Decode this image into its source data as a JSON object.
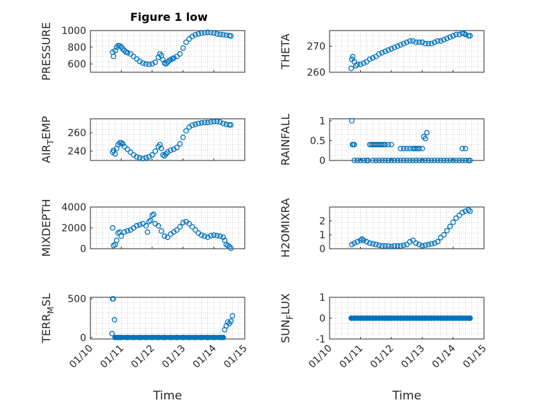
{
  "title": "Figure 1 low",
  "colors": {
    "marker": "#0072BD",
    "axis": "#262626",
    "grid": "#a6a6a6"
  },
  "x_tick_labels": [
    "01/10",
    "01/11",
    "01/12",
    "01/13",
    "01/14",
    "01/15"
  ],
  "chart_data": [
    {
      "type": "scatter",
      "ylabel": "PRESSURE",
      "xlabel": "",
      "xlim": [
        0,
        5
      ],
      "ylim": [
        500,
        1000
      ],
      "yticks": [
        600,
        800,
        1000
      ],
      "x": [
        0.72,
        0.75,
        0.8,
        0.85,
        0.9,
        0.95,
        1.0,
        1.05,
        1.1,
        1.15,
        1.2,
        1.3,
        1.4,
        1.5,
        1.6,
        1.7,
        1.8,
        1.9,
        2.0,
        2.1,
        2.2,
        2.25,
        2.3,
        2.35,
        2.4,
        2.45,
        2.5,
        2.55,
        2.6,
        2.65,
        2.7,
        2.8,
        2.9,
        3.0,
        3.1,
        3.2,
        3.3,
        3.4,
        3.5,
        3.6,
        3.7,
        3.8,
        3.9,
        4.0,
        4.1,
        4.2,
        4.3,
        4.4,
        4.5,
        4.55
      ],
      "values": [
        740,
        690,
        760,
        800,
        820,
        815,
        805,
        780,
        760,
        745,
        735,
        720,
        690,
        660,
        630,
        610,
        600,
        595,
        600,
        620,
        680,
        720,
        700,
        650,
        610,
        600,
        620,
        640,
        650,
        660,
        670,
        690,
        720,
        790,
        860,
        900,
        930,
        950,
        960,
        970,
        975,
        980,
        975,
        970,
        960,
        955,
        950,
        945,
        940,
        935
      ],
      "grid": true
    },
    {
      "type": "scatter",
      "ylabel": "THETA",
      "xlabel": "",
      "xlim": [
        0,
        5
      ],
      "ylim": [
        260,
        276
      ],
      "yticks": [
        260,
        270
      ],
      "x": [
        0.7,
        0.72,
        0.75,
        0.8,
        0.85,
        0.9,
        1.0,
        1.1,
        1.2,
        1.3,
        1.4,
        1.5,
        1.6,
        1.7,
        1.8,
        1.9,
        2.0,
        2.1,
        2.2,
        2.3,
        2.4,
        2.5,
        2.6,
        2.7,
        2.8,
        2.9,
        3.0,
        3.1,
        3.2,
        3.3,
        3.4,
        3.5,
        3.6,
        3.7,
        3.8,
        3.9,
        4.0,
        4.1,
        4.2,
        4.3,
        4.35,
        4.4,
        4.5,
        4.55
      ],
      "values": [
        261.5,
        265,
        266,
        264,
        262.5,
        263,
        263,
        263.5,
        264,
        265,
        265.5,
        266,
        267,
        267.5,
        268,
        268.5,
        269,
        269.5,
        270,
        270.5,
        271,
        271.5,
        272,
        272,
        271.5,
        271.5,
        271.5,
        271,
        271,
        271,
        271.5,
        272,
        272,
        272.5,
        273,
        273.5,
        274,
        274.5,
        274.5,
        275,
        274.8,
        274.5,
        274,
        274
      ],
      "grid": true
    },
    {
      "type": "scatter",
      "ylabel": "AIR_TEMP",
      "xlabel": "",
      "xlim": [
        0,
        5
      ],
      "ylim": [
        230,
        275
      ],
      "yticks": [
        240,
        260
      ],
      "x": [
        0.72,
        0.75,
        0.8,
        0.85,
        0.9,
        0.95,
        1.0,
        1.05,
        1.1,
        1.2,
        1.3,
        1.4,
        1.5,
        1.6,
        1.7,
        1.8,
        1.9,
        2.0,
        2.1,
        2.2,
        2.25,
        2.3,
        2.35,
        2.4,
        2.45,
        2.5,
        2.6,
        2.7,
        2.8,
        2.9,
        3.0,
        3.1,
        3.2,
        3.3,
        3.4,
        3.5,
        3.6,
        3.7,
        3.8,
        3.9,
        4.0,
        4.1,
        4.2,
        4.3,
        4.4,
        4.5,
        4.55
      ],
      "values": [
        239,
        241,
        237,
        243,
        247,
        249,
        249,
        248,
        245,
        242,
        239,
        236,
        234,
        233,
        232,
        233,
        234,
        236,
        240,
        245,
        247,
        243,
        236,
        235,
        237,
        239,
        241,
        242,
        244,
        248,
        255,
        262,
        266,
        268,
        269,
        270,
        270.5,
        271,
        271,
        271.5,
        272,
        272,
        271.5,
        270,
        269,
        268.5,
        268.5
      ],
      "grid": true
    },
    {
      "type": "scatter",
      "ylabel": "RAINFALL",
      "xlabel": "",
      "xlim": [
        0,
        5
      ],
      "ylim": [
        0,
        1.05
      ],
      "yticks": [
        0,
        0.5,
        1
      ],
      "x": [
        0.72,
        0.74,
        0.76,
        0.8,
        1.3,
        1.35,
        1.4,
        1.45,
        1.5,
        1.55,
        1.6,
        1.65,
        1.7,
        1.75,
        1.8,
        1.9,
        2.0,
        2.3,
        2.4,
        2.5,
        2.6,
        2.7,
        2.75,
        2.8,
        2.85,
        2.9,
        3.0,
        3.05,
        3.1,
        3.15,
        4.3,
        4.4,
        0.8,
        0.9,
        1.0,
        1.1,
        1.2,
        1.25,
        1.4,
        1.5,
        1.6,
        1.7,
        1.8,
        1.9,
        2.0,
        2.1,
        2.2,
        2.3,
        2.4,
        2.5,
        2.6,
        2.7,
        2.8,
        2.9,
        3.0,
        3.1,
        3.2,
        3.3,
        3.4,
        3.5,
        3.6,
        3.7,
        3.8,
        3.9,
        4.0,
        4.1,
        4.2,
        4.3,
        4.4,
        4.5,
        4.55
      ],
      "values": [
        1.0,
        0.4,
        0.4,
        0.4,
        0.4,
        0.4,
        0.4,
        0.4,
        0.4,
        0.4,
        0.4,
        0.4,
        0.4,
        0.4,
        0.4,
        0.4,
        0.4,
        0.3,
        0.3,
        0.3,
        0.3,
        0.3,
        0.3,
        0.3,
        0.3,
        0.3,
        0.3,
        0.6,
        0.55,
        0.7,
        0.3,
        0.3,
        0,
        0,
        0,
        0,
        0,
        0,
        0,
        0,
        0,
        0,
        0,
        0,
        0,
        0,
        0,
        0,
        0,
        0,
        0,
        0,
        0,
        0,
        0,
        0,
        0,
        0,
        0,
        0,
        0,
        0,
        0,
        0,
        0,
        0,
        0,
        0,
        0,
        0,
        0
      ],
      "grid": true
    },
    {
      "type": "scatter",
      "ylabel": "MIXDEPTH",
      "xlabel": "",
      "xlim": [
        0,
        5
      ],
      "ylim": [
        0,
        4000
      ],
      "yticks": [
        0,
        2000,
        4000
      ],
      "x": [
        0.72,
        0.75,
        0.8,
        0.85,
        0.9,
        0.95,
        1.0,
        1.1,
        1.2,
        1.3,
        1.4,
        1.5,
        1.6,
        1.7,
        1.8,
        1.85,
        1.9,
        1.95,
        2.0,
        2.05,
        2.1,
        2.2,
        2.3,
        2.4,
        2.5,
        2.6,
        2.7,
        2.8,
        2.9,
        3.0,
        3.1,
        3.2,
        3.3,
        3.4,
        3.5,
        3.6,
        3.7,
        3.8,
        3.9,
        4.0,
        4.1,
        4.2,
        4.3,
        4.35,
        4.4,
        4.45,
        4.5,
        4.55
      ],
      "values": [
        2000,
        300,
        400,
        800,
        1500,
        1600,
        1200,
        1600,
        1700,
        1800,
        2000,
        2200,
        2300,
        2400,
        2200,
        1600,
        2600,
        2700,
        3200,
        3300,
        2400,
        2200,
        1700,
        1200,
        1100,
        1400,
        1600,
        1800,
        2100,
        2500,
        2600,
        2400,
        2100,
        1800,
        1500,
        1300,
        1200,
        1100,
        1250,
        1300,
        1250,
        1200,
        1100,
        800,
        400,
        300,
        200,
        50
      ],
      "grid": true
    },
    {
      "type": "scatter",
      "ylabel": "H2OMIXRA",
      "xlabel": "",
      "xlim": [
        0,
        5
      ],
      "ylim": [
        0,
        3
      ],
      "yticks": [
        0,
        1,
        2
      ],
      "x": [
        0.72,
        0.8,
        0.9,
        1.0,
        1.05,
        1.1,
        1.2,
        1.3,
        1.4,
        1.5,
        1.6,
        1.7,
        1.8,
        1.9,
        2.0,
        2.1,
        2.2,
        2.3,
        2.4,
        2.5,
        2.6,
        2.7,
        2.8,
        2.9,
        3.0,
        3.1,
        3.2,
        3.3,
        3.4,
        3.5,
        3.6,
        3.7,
        3.8,
        3.9,
        4.0,
        4.1,
        4.2,
        4.3,
        4.4,
        4.5,
        4.55
      ],
      "values": [
        0.3,
        0.4,
        0.5,
        0.6,
        0.7,
        0.6,
        0.5,
        0.4,
        0.35,
        0.3,
        0.25,
        0.2,
        0.2,
        0.2,
        0.15,
        0.2,
        0.2,
        0.2,
        0.25,
        0.3,
        0.5,
        0.6,
        0.4,
        0.3,
        0.2,
        0.25,
        0.3,
        0.35,
        0.4,
        0.5,
        0.8,
        1.0,
        1.3,
        1.6,
        1.9,
        2.2,
        2.4,
        2.6,
        2.7,
        2.8,
        2.7
      ],
      "grid": true
    },
    {
      "type": "scatter",
      "ylabel": "TERR_MSL",
      "xlabel": "Time",
      "xlim": [
        0,
        5
      ],
      "ylim": [
        -20,
        520
      ],
      "yticks": [
        0,
        500
      ],
      "x": [
        0.7,
        0.72,
        0.74,
        0.78,
        0.8,
        0.9,
        1.0,
        1.2,
        1.4,
        1.6,
        1.8,
        2.0,
        2.2,
        2.4,
        2.6,
        2.8,
        3.0,
        3.2,
        3.4,
        3.6,
        3.8,
        4.0,
        4.2,
        4.3,
        4.35,
        4.4,
        4.45,
        4.5,
        4.55,
        4.6
      ],
      "values": [
        50,
        500,
        500,
        230,
        0,
        0,
        0,
        0,
        0,
        0,
        0,
        0,
        0,
        0,
        0,
        0,
        0,
        0,
        0,
        0,
        0,
        0,
        0,
        0,
        100,
        150,
        200,
        180,
        210,
        280
      ],
      "grid": true
    },
    {
      "type": "scatter",
      "ylabel": "SUN_FLUX",
      "xlabel": "Time",
      "xlim": [
        0,
        5
      ],
      "ylim": [
        -1,
        1
      ],
      "yticks": [
        -1,
        0,
        1
      ],
      "x": [
        0.7,
        0.8,
        0.9,
        1.0,
        1.1,
        1.2,
        1.3,
        1.4,
        1.5,
        1.6,
        1.7,
        1.8,
        1.9,
        2.0,
        2.1,
        2.2,
        2.3,
        2.4,
        2.5,
        2.6,
        2.7,
        2.8,
        2.9,
        3.0,
        3.1,
        3.2,
        3.3,
        3.4,
        3.5,
        3.6,
        3.7,
        3.8,
        3.9,
        4.0,
        4.1,
        4.2,
        4.3,
        4.4,
        4.5,
        4.55
      ],
      "values": [
        0,
        0,
        0,
        0,
        0,
        0,
        0,
        0,
        0,
        0,
        0,
        0,
        0,
        0,
        0,
        0,
        0,
        0,
        0,
        0,
        0,
        0,
        0,
        0,
        0,
        0,
        0,
        0,
        0,
        0,
        0,
        0,
        0,
        0,
        0,
        0,
        0,
        0,
        0,
        0
      ],
      "grid": true
    }
  ]
}
